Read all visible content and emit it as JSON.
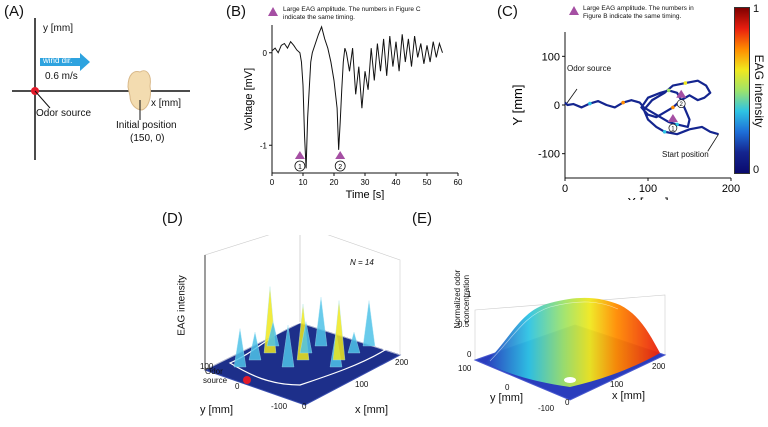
{
  "panels": {
    "A": {
      "label": "(A)",
      "y_axis": "y [mm]",
      "x_axis": "x [mm]",
      "wind_label": "wind dir.",
      "wind_speed": "0.6 m/s",
      "odor_source": "Odor source",
      "initial_position_line1": "Initial position",
      "initial_position_line2": "(150, 0)"
    },
    "B": {
      "label": "(B)",
      "note_line1": "Large EAG amplitude. The numbers in Figure C",
      "note_line2": "indicate the same timing.",
      "marker1": "1",
      "marker2": "2"
    },
    "C": {
      "label": "(C)",
      "note_line1": "Large EAG amplitude. The numbers in",
      "note_line2": "Figure B indicate the same timing.",
      "odor_source": "Odor source",
      "start_position": "Start position",
      "colorbar_label": "EAG intensity",
      "colorbar_max": "1",
      "colorbar_min": "0",
      "marker1": "1",
      "marker2": "2"
    },
    "D": {
      "label": "(D)",
      "n_label": "N = 14",
      "z_axis": "EAG intensity",
      "y_axis": "y [mm]",
      "x_axis": "x [mm]",
      "odor_source_line1": "Odor",
      "odor_source_line2": "source",
      "y_ticks": [
        "100",
        "0",
        "-100"
      ],
      "x_ticks": [
        "0",
        "100",
        "200"
      ]
    },
    "E": {
      "label": "(E)",
      "z_axis_line1": "Normalized odor",
      "z_axis_line2": "concentration",
      "z_ticks": [
        "1",
        "0.5",
        "0"
      ],
      "y_axis": "y [mm]",
      "x_axis": "x [mm]",
      "y_ticks": [
        "100",
        "0",
        "-100"
      ],
      "x_ticks": [
        "0",
        "100",
        "200"
      ]
    }
  },
  "chart_data": [
    {
      "type": "line",
      "panel": "B",
      "title": "",
      "xlabel": "Time [s]",
      "ylabel": "Voltage [mV]",
      "xlim": [
        0,
        60
      ],
      "ylim": [
        -1.3,
        0.3
      ],
      "x_ticks": [
        0,
        10,
        20,
        30,
        40,
        50,
        60
      ],
      "y_ticks": [
        0,
        -1
      ],
      "x": [
        0,
        1,
        2,
        3,
        4,
        5,
        6,
        7,
        8,
        9,
        9.5,
        10,
        10.5,
        11,
        11.5,
        12,
        12.5,
        13,
        14,
        15,
        16,
        17,
        18,
        19,
        20,
        21,
        21.5,
        22,
        22.5,
        23,
        23.5,
        24,
        25,
        26,
        27,
        28,
        29,
        30,
        31,
        32,
        33,
        34,
        35,
        36,
        37,
        38,
        39,
        40,
        41,
        42,
        43,
        44,
        45,
        46,
        47,
        48,
        49,
        50,
        51,
        52,
        53,
        54,
        55
      ],
      "values": [
        0.02,
        0.05,
        0.0,
        0.08,
        0.1,
        0.05,
        0.12,
        0.08,
        0.03,
        0.0,
        -0.1,
        -0.35,
        -0.9,
        -1.25,
        -0.7,
        -0.4,
        -0.1,
        0.0,
        0.1,
        0.2,
        0.28,
        0.15,
        0.05,
        -0.1,
        -0.3,
        -0.6,
        -1.05,
        -0.75,
        -0.4,
        -0.1,
        0.05,
        0.0,
        -0.2,
        0.05,
        -0.45,
        -0.15,
        -0.6,
        -0.2,
        -0.4,
        0.05,
        -0.3,
        0.1,
        -0.2,
        0.15,
        -0.25,
        0.18,
        -0.15,
        0.12,
        -0.2,
        0.2,
        -0.1,
        0.15,
        -0.15,
        0.18,
        -0.05,
        0.1,
        -0.12,
        0.08,
        -0.1,
        0.12,
        -0.05,
        0.1,
        0.0
      ],
      "markers": [
        {
          "label": "1",
          "x": 9
        },
        {
          "label": "2",
          "x": 22
        }
      ]
    },
    {
      "type": "line",
      "panel": "C",
      "title": "",
      "xlabel": "X [mm]",
      "ylabel": "Y [mm]",
      "xlim": [
        0,
        200
      ],
      "ylim": [
        -150,
        150
      ],
      "x_ticks": [
        0,
        100,
        200
      ],
      "y_ticks": [
        100,
        0,
        -100
      ],
      "x": [
        185,
        175,
        165,
        150,
        135,
        120,
        110,
        100,
        95,
        105,
        120,
        130,
        145,
        160,
        170,
        175,
        168,
        160,
        150,
        140,
        130,
        120,
        110,
        100,
        92,
        100,
        115,
        125,
        135,
        140,
        145,
        150,
        148,
        135,
        125,
        115,
        105,
        95,
        90,
        80,
        70,
        60,
        50,
        40,
        30,
        20,
        10,
        3,
        0
      ],
      "values": [
        -60,
        -55,
        -45,
        -50,
        -60,
        -55,
        -45,
        -30,
        -10,
        10,
        25,
        40,
        45,
        50,
        40,
        25,
        15,
        10,
        20,
        10,
        -5,
        -15,
        -25,
        -20,
        -5,
        15,
        25,
        30,
        25,
        10,
        -10,
        -30,
        -45,
        -40,
        -35,
        -25,
        -15,
        -5,
        5,
        10,
        5,
        -5,
        0,
        8,
        3,
        -5,
        2,
        0,
        5
      ],
      "intensity_range": [
        0,
        1
      ],
      "markers": [
        {
          "label": "1",
          "x": 130,
          "y": -35
        },
        {
          "label": "2",
          "x": 140,
          "y": 15
        }
      ]
    },
    {
      "type": "surface",
      "panel": "D",
      "title": "",
      "xlabel": "x [mm]",
      "ylabel": "y [mm]",
      "zlabel": "EAG intensity",
      "xlim": [
        0,
        200
      ],
      "ylim": [
        -100,
        100
      ],
      "series": [
        {
          "name": "EAG intensity",
          "values": [
            0.55,
            0.4,
            0.95,
            0.35,
            0.6,
            0.8,
            0.45,
            0.7,
            0.5,
            0.85,
            0.3,
            0.65
          ]
        }
      ]
    },
    {
      "type": "surface",
      "panel": "E",
      "title": "",
      "xlabel": "x [mm]",
      "ylabel": "y [mm]",
      "zlabel": "Normalized odor concentration",
      "xlim": [
        0,
        200
      ],
      "ylim": [
        -100,
        100
      ],
      "zlim": [
        0,
        1
      ]
    }
  ]
}
